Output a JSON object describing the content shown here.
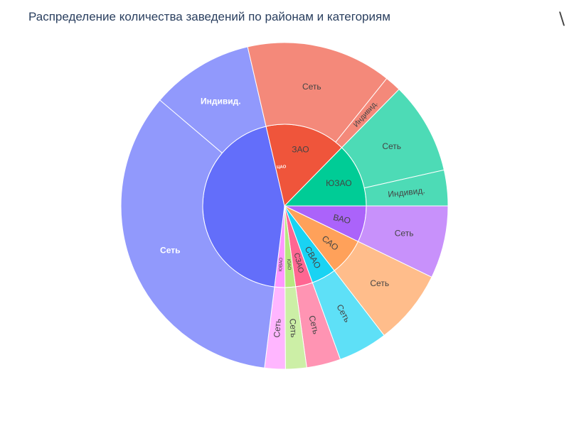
{
  "title": "Распределение количества заведений по районам и категориям",
  "edge_glyph": "\\",
  "chart_data": {
    "type": "sunburst",
    "title": "Распределение количества заведений по районам и категориям",
    "start_angle_deg": 0,
    "direction": "clockwise",
    "districts": [
      {
        "name": "ВАО",
        "value": 6.25,
        "color": "#AB63FA",
        "children": [
          {
            "name": "Сеть",
            "value": 6.25,
            "color": "#C891FB"
          }
        ]
      },
      {
        "name": "САО",
        "value": 6.43,
        "color": "#FFA15A",
        "children": [
          {
            "name": "Сеть",
            "value": 6.43,
            "color": "#FFBD8B"
          }
        ]
      },
      {
        "name": "СВАО",
        "value": 4.25,
        "color": "#19D3F3",
        "children": [
          {
            "name": "Сеть",
            "value": 4.25,
            "color": "#5EE0F7"
          }
        ]
      },
      {
        "name": "СЗАО",
        "value": 2.93,
        "color": "#FF6692",
        "children": [
          {
            "name": "Сеть",
            "value": 2.93,
            "color": "#FF94B3"
          }
        ]
      },
      {
        "name": "ЮАО",
        "value": 1.81,
        "color": "#B6E880",
        "children": [
          {
            "name": "Сеть",
            "value": 1.81,
            "color": "#CCEFA6"
          }
        ]
      },
      {
        "name": "ЮВАО",
        "value": 1.78,
        "color": "#FF97FF",
        "children": [
          {
            "name": "Сеть",
            "value": 1.78,
            "color": "#FFB6FF"
          }
        ]
      },
      {
        "name": "ЦАО",
        "value": 38.65,
        "color": "#636EFA",
        "children": [
          {
            "name": "Сеть",
            "value": 29.81,
            "color": "#9199FC"
          },
          {
            "name": "Индивид.",
            "value": 8.84,
            "color": "#9199FC"
          }
        ]
      },
      {
        "name": "ЗАО",
        "value": 13.89,
        "color": "#EF553B",
        "children": [
          {
            "name": "Сеть",
            "value": 12.5,
            "color": "#F4897A"
          },
          {
            "name": "Индивид.",
            "value": 1.39,
            "color": "#F4897A"
          }
        ]
      },
      {
        "name": "ЮЗАО",
        "value": 11.01,
        "color": "#00CC96",
        "children": [
          {
            "name": "Сеть",
            "value": 7.94,
            "color": "#4DDBB6"
          },
          {
            "name": "Индивид.",
            "value": 3.07,
            "color": "#4DDBB6"
          }
        ]
      }
    ]
  }
}
